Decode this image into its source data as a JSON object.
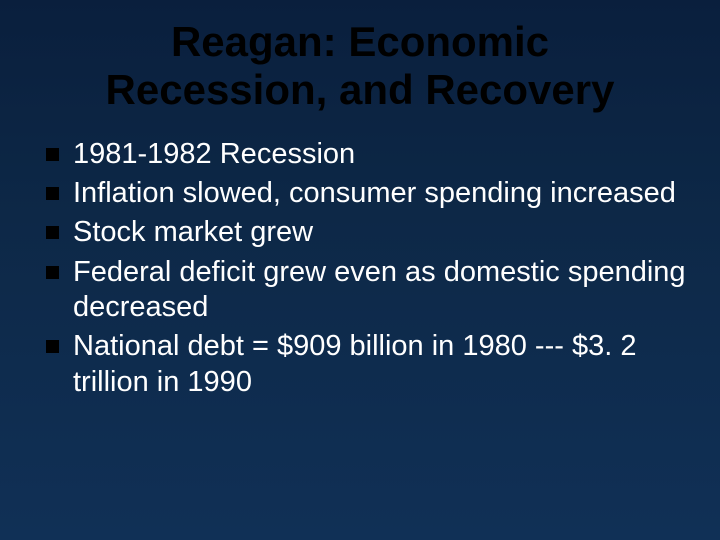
{
  "slide": {
    "title": "Reagan: Economic Recession, and Recovery",
    "title_color": "#000000",
    "title_fontsize": 42,
    "background_gradient": [
      "#0a1f3d",
      "#0d2847",
      "#103056"
    ],
    "bullet_marker_color": "#000000",
    "bullet_text_color": "#ffffff",
    "bullet_fontsize": 29,
    "bullets": [
      "1981-1982 Recession",
      "Inflation slowed, consumer spending increased",
      "Stock market grew",
      "Federal deficit grew even as domestic spending decreased",
      "National debt = $909 billion in 1980 --- $3. 2 trillion in 1990"
    ]
  }
}
